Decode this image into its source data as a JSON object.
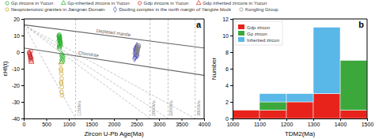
{
  "chart_data": [
    {
      "type": "scatter",
      "title": "a",
      "xlabel": "Zircon U-Pb Age(Ma)",
      "ylabel": "εHf(t)",
      "xlim": [
        0,
        4000
      ],
      "ylim": [
        -40,
        20
      ],
      "xticks": [
        0,
        500,
        1000,
        1500,
        2000,
        2500,
        3000,
        3500,
        4000
      ],
      "yticks": [
        -40,
        -30,
        -20,
        -10,
        0,
        10,
        20
      ],
      "grid": false,
      "legend": "top",
      "series": [
        {
          "name": "Gp zircons in Yucun",
          "color": "#22aa22",
          "marker": "circle",
          "x": [
            775,
            780,
            785,
            790,
            795,
            800,
            805,
            810,
            815,
            820,
            785,
            792,
            803,
            798,
            788,
            778,
            808,
            817,
            793,
            783
          ],
          "values": [
            9.5,
            10,
            8.5,
            7.5,
            9,
            8,
            7,
            6,
            5,
            4,
            3,
            2,
            8.5,
            9.5,
            10.5,
            7,
            6.5,
            5.5,
            3.5,
            4.5
          ]
        },
        {
          "name": "Gp-inherited zircons in Yucun",
          "color": "#22aa22",
          "marker": "triangle",
          "x": [
            845,
            855,
            865,
            850,
            860,
            840
          ],
          "values": [
            -1,
            -2,
            -3,
            -4,
            -5,
            -6
          ]
        },
        {
          "name": "Gdp zircons in Yucun",
          "color": "#cc2222",
          "marker": "circle",
          "x": [
            125,
            135,
            145,
            155,
            130,
            140,
            150,
            120,
            160
          ],
          "values": [
            -0.5,
            -1,
            -2,
            -3,
            -1.5,
            -2.5,
            -3.5,
            0,
            0.5
          ]
        },
        {
          "name": "Gdp inherited zircons in Yucun",
          "color": "#cc2222",
          "marker": "triangle",
          "x": [
            155,
            165,
            170,
            160
          ],
          "values": [
            -4,
            -5,
            -6,
            -3
          ]
        },
        {
          "name": "Neoproterozoic granites in Jiangnan Domain",
          "color": "#c8a020",
          "marker": "circle",
          "x": [
            825,
            835,
            840,
            830,
            845,
            838,
            820,
            850,
            828,
            832
          ],
          "values": [
            -10,
            -13,
            -16,
            -18,
            -21,
            -24,
            -7,
            -26,
            -11,
            -19
          ]
        },
        {
          "name": "Douling complex in the north margin of Yangtze block",
          "color": "#5555bb",
          "marker": "diamond",
          "x": [
            2460,
            2470,
            2480,
            2490,
            2500,
            2510,
            2520,
            2465,
            2475,
            2485,
            2495,
            2505,
            2515,
            2455,
            2525,
            2468,
            2488,
            2498,
            2508,
            2478
          ],
          "values": [
            -1,
            0,
            1,
            2,
            3,
            4,
            -2,
            -3,
            1,
            -1,
            2,
            3,
            -2,
            -4,
            0,
            2,
            -2,
            1,
            0,
            -3
          ]
        },
        {
          "name": "Kongling Group",
          "color": "#888888",
          "marker": "circle",
          "x": [
            2505,
            2515,
            2525,
            2535,
            2545,
            2510,
            2520,
            2530,
            2540,
            2550,
            2512,
            2522,
            2532,
            2542,
            2502
          ],
          "values": [
            0,
            1,
            2,
            3,
            4,
            -1,
            1,
            2,
            3,
            4,
            0,
            1,
            2,
            3,
            -1
          ]
        }
      ],
      "reference_lines": [
        {
          "label": "Depleted mantle",
          "x": [
            0,
            4000
          ],
          "values": [
            16.5,
            2.5
          ],
          "color": "#666666",
          "line_style": "solid"
        },
        {
          "label": "Chondrite",
          "x": [
            0,
            4000
          ],
          "values": [
            2.5,
            -14.0
          ],
          "color": "#666666",
          "line_style": "solid"
        },
        {
          "x": [
            0,
            1150
          ],
          "values": [
            16.5,
            -40
          ],
          "color": "#aaaaaa",
          "line_style": "dashed"
        },
        {
          "x": [
            0,
            2800
          ],
          "values": [
            16.5,
            -40
          ],
          "color": "#aaaaaa",
          "line_style": "dashed"
        },
        {
          "x": [
            0,
            3200
          ],
          "values": [
            16.5,
            -40
          ],
          "color": "#aaaaaa",
          "line_style": "dashed"
        },
        {
          "x": [
            0,
            3800
          ],
          "values": [
            16.5,
            -40
          ],
          "color": "#aaaaaa",
          "line_style": "dashed"
        }
      ],
      "vlines": [
        {
          "x": 1150,
          "label": "1150Ma",
          "color": "#aaaaaa",
          "line_style": "dashed"
        },
        {
          "x": 2800,
          "label": "2800Ma",
          "color": "#aaaaaa",
          "line_style": "dashed"
        },
        {
          "x": 3200,
          "label": "3200Ma",
          "color": "#aaaaaa",
          "line_style": "dashed"
        },
        {
          "x": 3800,
          "label": "3800Ma",
          "color": "#aaaaaa",
          "line_style": "dashed"
        }
      ]
    },
    {
      "type": "bar",
      "stacked": true,
      "title": "b",
      "xlabel": "TDM2(Ma)",
      "ylabel": "Number",
      "bins": [
        1000,
        1100,
        1200,
        1300,
        1400,
        1500
      ],
      "xlim": [
        1000,
        1500
      ],
      "xticks": [
        1000,
        1100,
        1200,
        1300,
        1400,
        1500
      ],
      "ylim": [
        0,
        12
      ],
      "yticks": [
        0,
        2,
        4,
        6,
        8,
        10,
        12
      ],
      "grid": false,
      "legend": "upper left",
      "series": [
        {
          "name": "Gdp zircon",
          "color": "#e8231c",
          "values": [
            1,
            1,
            2,
            3,
            1
          ]
        },
        {
          "name": "Gp zircon",
          "color": "#3ca83c",
          "values": [
            0,
            1,
            0,
            0,
            6
          ]
        },
        {
          "name": "Inherited zircon",
          "color": "#5ab8e8",
          "values": [
            0,
            1,
            1,
            8,
            0
          ]
        }
      ]
    }
  ]
}
